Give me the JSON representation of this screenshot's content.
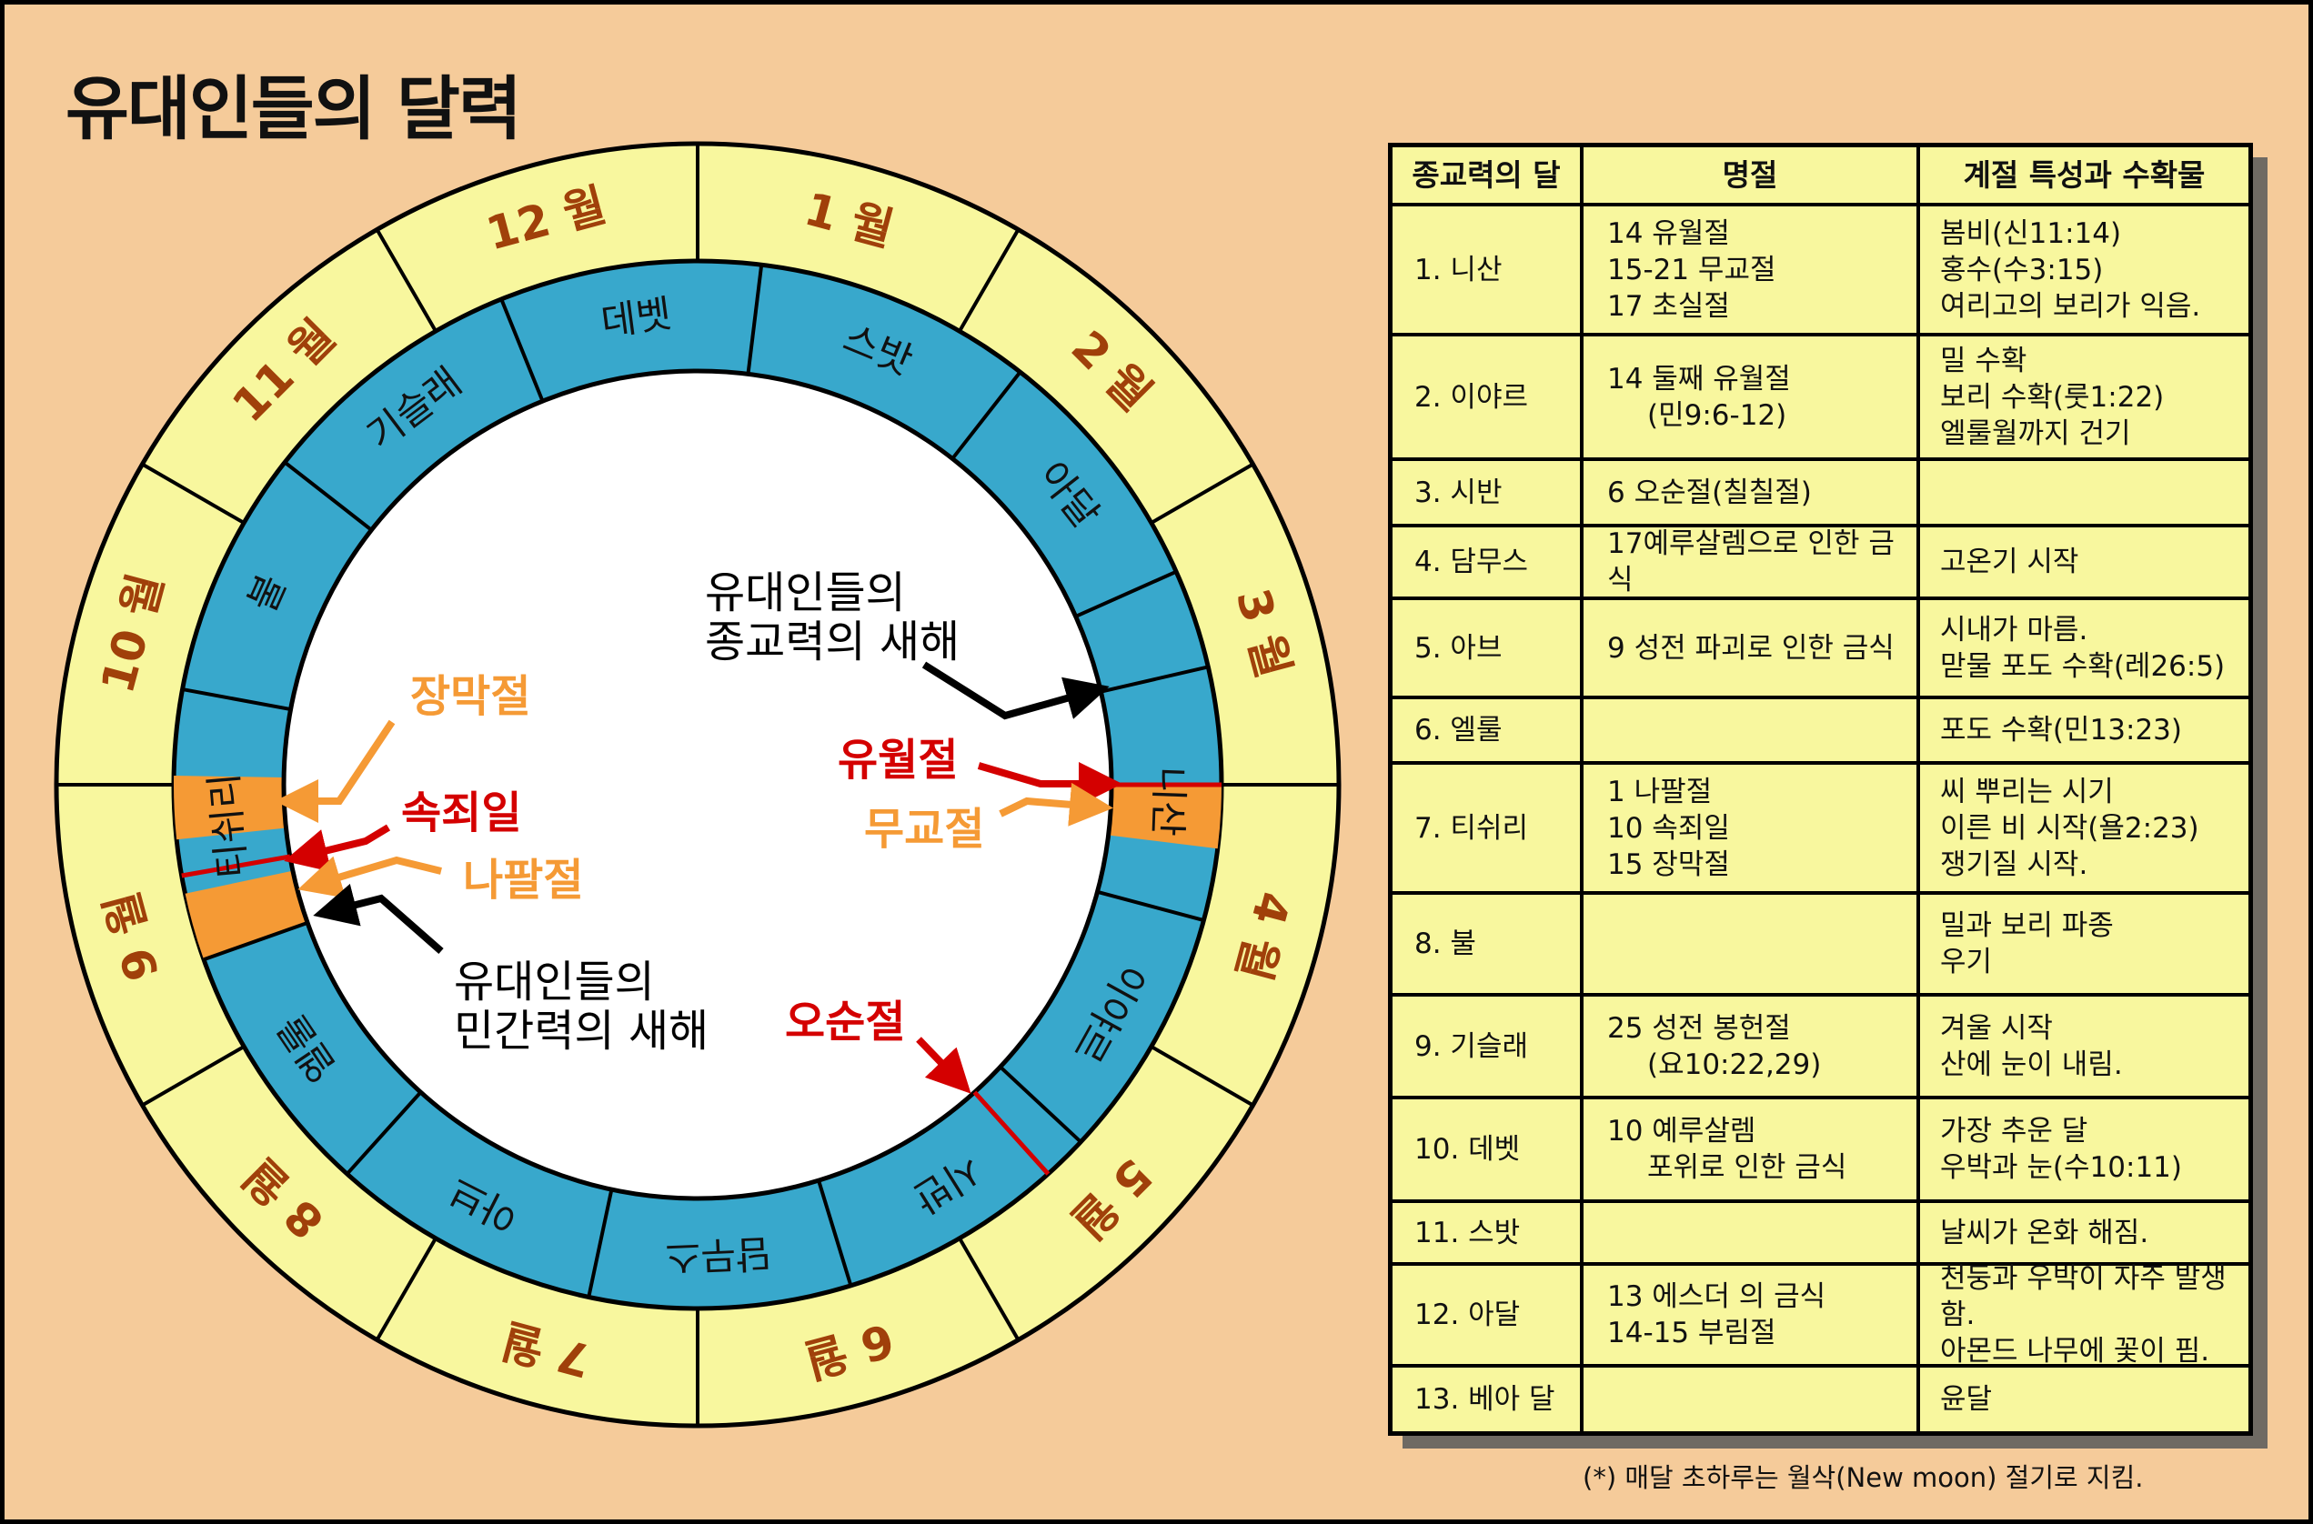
{
  "title": "유대인들의 달력",
  "colors": {
    "background": "#F5CB9A",
    "month_ring": "#F8F79E",
    "hebrew_ring": "#38A8CC",
    "highlight": "#F59A35",
    "red": "#D40000",
    "orange_text": "#F59A35",
    "month_label": "#A0400A"
  },
  "months": [
    "1 월",
    "2 월",
    "3 월",
    "4 월",
    "5 월",
    "6 월",
    "7 월",
    "8 월",
    "9 월",
    "10 월",
    "11 월",
    "12 월"
  ],
  "hebrew_months": [
    "데벳",
    "스밧",
    "아달",
    "",
    "니산",
    "이야르",
    "시반",
    "담무스",
    "아브",
    "엘룰",
    "티쉬리",
    "불",
    "기슬래"
  ],
  "annotations": {
    "religious_new_year": [
      "유대인들의",
      "종교력의 새해"
    ],
    "civil_new_year": [
      "유대인들의",
      "민간력의 새해"
    ],
    "passover": "유월절",
    "unleavened_bread": "무교절",
    "tabernacles": "장막절",
    "atonement": "속죄일",
    "trumpets": "나팔절",
    "pentecost": "오순절"
  },
  "table": {
    "headers": [
      "종교력의 달",
      "명절",
      "계절 특성과 수확물"
    ],
    "rows": [
      {
        "month": "1. 니산",
        "holidays": [
          "14 유월절",
          "15-21 무교절",
          "17 초실절"
        ],
        "season": [
          "봄비(신11:14)",
          "홍수(수3:15)",
          "여리고의 보리가  익음."
        ]
      },
      {
        "month": "2. 이야르",
        "holidays": [
          "14 둘째 유월절",
          "(민9:6-12)"
        ],
        "season": [
          "밀 수확",
          "보리 수확(룻1:22)",
          "엘룰월까지 건기"
        ]
      },
      {
        "month": "3. 시반",
        "holidays": [
          "6 오순절(칠칠절)"
        ],
        "season": []
      },
      {
        "month": "4. 담무스",
        "holidays": [
          "17예루살렘으로 인한 금식"
        ],
        "season": [
          "고온기 시작"
        ]
      },
      {
        "month": "5. 아브",
        "holidays": [
          "9 성전 파괴로 인한 금식"
        ],
        "season": [
          "시내가 마름.",
          "맏물 포도 수확(레26:5)"
        ]
      },
      {
        "month": "6. 엘룰",
        "holidays": [],
        "season": [
          "포도 수확(민13:23)"
        ]
      },
      {
        "month": "7. 티쉬리",
        "holidays": [
          "1 나팔절",
          "10 속죄일",
          "15 장막절"
        ],
        "season": [
          "씨 뿌리는 시기",
          "이른 비 시작(욜2:23)",
          "쟁기질 시작."
        ]
      },
      {
        "month": "8. 불",
        "holidays": [],
        "season": [
          "밀과 보리 파종",
          "우기"
        ]
      },
      {
        "month": "9. 기슬래",
        "holidays": [
          "25 성전 봉헌절",
          "(요10:22,29)"
        ],
        "season": [
          "겨울 시작",
          "산에 눈이 내림."
        ]
      },
      {
        "month": "10. 데벳",
        "holidays": [
          "10 예루살렘",
          "포위로 인한 금식"
        ],
        "season": [
          "가장 추운 달",
          "우박과 눈(수10:11)"
        ]
      },
      {
        "month": "11. 스밧",
        "holidays": [],
        "season": [
          "날씨가 온화 해짐."
        ]
      },
      {
        "month": "12. 아달",
        "holidays": [
          "13 에스더 의 금식",
          "14-15 부림절"
        ],
        "season": [
          "천둥과 우박이 자주 발생함.",
          "아몬드 나무에 꽃이 핌."
        ]
      },
      {
        "month": "13. 베아 달",
        "holidays": [],
        "season": [
          "윤달"
        ]
      }
    ]
  },
  "footnote": "(*) 매달 초하루는 월삭(New moon) 절기로 지킴."
}
